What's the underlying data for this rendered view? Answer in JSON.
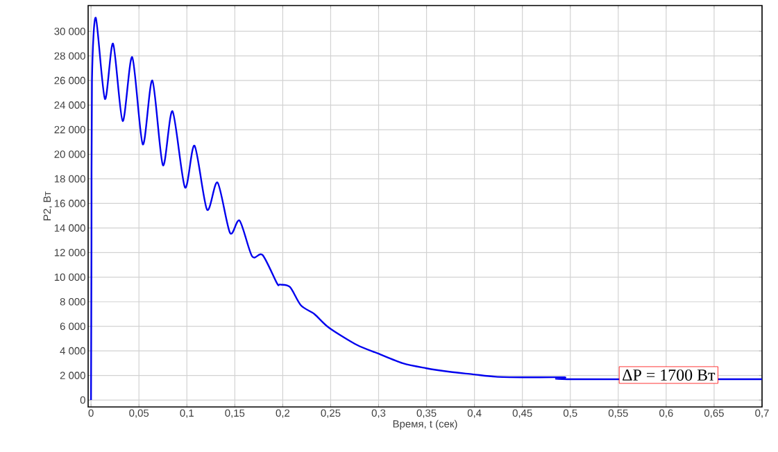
{
  "chart_data": {
    "type": "line",
    "xlabel": "Время, t (сек)",
    "ylabel": "P2, Вт",
    "annotations": [
      "ΔP = 1700 Вт"
    ],
    "xlim": [
      -0.003,
      0.7
    ],
    "ylim": [
      -560,
      32100
    ],
    "xticks": [
      0,
      {
        "value": 0.05,
        "label": "0,05"
      },
      {
        "value": 0.1,
        "label": "0,1"
      },
      {
        "value": 0.15,
        "label": "0,15"
      },
      {
        "value": 0.2,
        "label": "0,2"
      },
      {
        "value": 0.25,
        "label": "0,25"
      },
      {
        "value": 0.3,
        "label": "0,3"
      },
      {
        "value": 0.35,
        "label": "0,35"
      },
      {
        "value": 0.4,
        "label": "0,4"
      },
      {
        "value": 0.45,
        "label": "0,45"
      },
      {
        "value": 0.5,
        "label": "0,5"
      },
      {
        "value": 0.55,
        "label": "0,55"
      },
      {
        "value": 0.6,
        "label": "0,6"
      },
      {
        "value": 0.65,
        "label": "0,65"
      },
      {
        "value": 0.7,
        "label": "0,7"
      }
    ],
    "yticks": [
      0,
      {
        "value": 2000,
        "label": "2 000"
      },
      {
        "value": 4000,
        "label": "4 000"
      },
      {
        "value": 6000,
        "label": "6 000"
      },
      {
        "value": 8000,
        "label": "8 000"
      },
      {
        "value": 10000,
        "label": "10 000"
      },
      {
        "value": 12000,
        "label": "12 000"
      },
      {
        "value": 14000,
        "label": "14 000"
      },
      {
        "value": 16000,
        "label": "16 000"
      },
      {
        "value": 18000,
        "label": "18 000"
      },
      {
        "value": 20000,
        "label": "20 000"
      },
      {
        "value": 22000,
        "label": "22 000"
      },
      {
        "value": 24000,
        "label": "24 000"
      },
      {
        "value": 26000,
        "label": "26 000"
      },
      {
        "value": 28000,
        "label": "28 000"
      },
      {
        "value": 30000,
        "label": "30 000"
      }
    ],
    "grid": true,
    "marker": "none",
    "line_style": "solid",
    "series": [
      {
        "color": "#0000ee",
        "x": [
          0,
          0.0005,
          0.001,
          0.005,
          0.0145,
          0.023,
          0.033,
          0.043,
          0.054,
          0.064,
          0.075,
          0.085,
          0.098,
          0.108,
          0.121,
          0.132,
          0.145,
          0.155,
          0.168,
          0.179,
          0.194,
          0.197,
          0.2075,
          0.219,
          0.233,
          0.248,
          0.277,
          0.299,
          0.325,
          0.349,
          0.374,
          0.398,
          0.422,
          0.45,
          0.494,
          0.497,
          0.7
        ],
        "values": [
          0,
          12700,
          26000,
          31100,
          24500,
          29000,
          22700,
          27900,
          20800,
          26000,
          19100,
          23500,
          17300,
          20700,
          15500,
          17700,
          13600,
          14600,
          11700,
          11800,
          9500,
          9400,
          9200,
          7700,
          7000,
          5900,
          4500,
          3800,
          3000,
          2600,
          2300,
          2100,
          1900,
          1850,
          1850,
          1700,
          1700
        ]
      }
    ]
  }
}
